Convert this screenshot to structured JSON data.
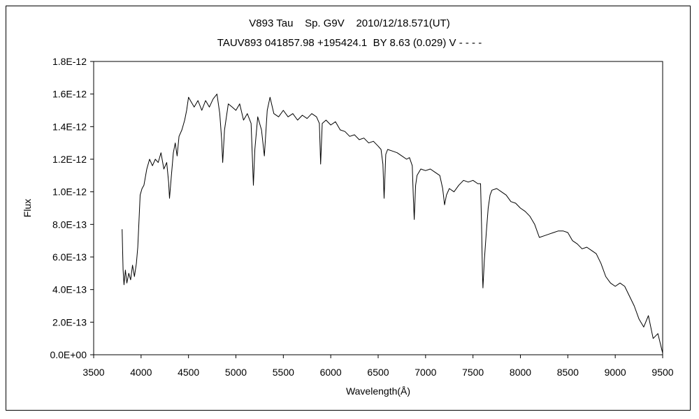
{
  "chart_data": {
    "type": "line",
    "title": "V893 Tau    Sp. G9V    2010/12/18.571(UT)",
    "subtitle": "TAUV893 041857.98 +195424.1  BY 8.63 (0.029) V - - - -",
    "xlabel": "Wavelength(Å)",
    "ylabel": "Flux",
    "xlim": [
      3500,
      9500
    ],
    "ylim": [
      0,
      1.8e-12
    ],
    "x_ticks": [
      3500,
      4000,
      4500,
      5000,
      5500,
      6000,
      6500,
      7000,
      7500,
      8000,
      8500,
      9000,
      9500
    ],
    "y_ticks": [
      0,
      2e-13,
      4e-13,
      6e-13,
      8e-13,
      1e-12,
      1.2e-12,
      1.4e-12,
      1.6e-12,
      1.8e-12
    ],
    "x_tick_labels": [
      "3500",
      "4000",
      "4500",
      "5000",
      "5500",
      "6000",
      "6500",
      "7000",
      "7500",
      "8000",
      "8500",
      "9000",
      "9500"
    ],
    "y_tick_labels": [
      "0.0E+00",
      "2.0E-13",
      "4.0E-13",
      "6.0E-13",
      "8.0E-13",
      "1.0E-12",
      "1.2E-12",
      "1.4E-12",
      "1.6E-12",
      "1.8E-12"
    ],
    "grid": false,
    "series": [
      {
        "color": "#000000",
        "points": [
          [
            3800,
            7.7e-13
          ],
          [
            3810,
            5.2e-13
          ],
          [
            3820,
            4.3e-13
          ],
          [
            3835,
            5.2e-13
          ],
          [
            3850,
            4.4e-13
          ],
          [
            3870,
            5e-13
          ],
          [
            3890,
            4.6e-13
          ],
          [
            3910,
            5.5e-13
          ],
          [
            3930,
            4.8e-13
          ],
          [
            3950,
            5.6e-13
          ],
          [
            3965,
            6.6e-13
          ],
          [
            3975,
            7.8e-13
          ],
          [
            3990,
            9.8e-13
          ],
          [
            4010,
            1.02e-12
          ],
          [
            4030,
            1.04e-12
          ],
          [
            4060,
            1.14e-12
          ],
          [
            4090,
            1.2e-12
          ],
          [
            4120,
            1.16e-12
          ],
          [
            4150,
            1.2e-12
          ],
          [
            4180,
            1.18e-12
          ],
          [
            4210,
            1.24e-12
          ],
          [
            4240,
            1.14e-12
          ],
          [
            4270,
            1.18e-12
          ],
          [
            4290,
            1.06e-12
          ],
          [
            4300,
            9.6e-13
          ],
          [
            4320,
            1.1e-12
          ],
          [
            4340,
            1.24e-12
          ],
          [
            4360,
            1.3e-12
          ],
          [
            4380,
            1.22e-12
          ],
          [
            4400,
            1.34e-12
          ],
          [
            4430,
            1.38e-12
          ],
          [
            4460,
            1.44e-12
          ],
          [
            4480,
            1.5e-12
          ],
          [
            4500,
            1.58e-12
          ],
          [
            4530,
            1.55e-12
          ],
          [
            4560,
            1.52e-12
          ],
          [
            4600,
            1.56e-12
          ],
          [
            4640,
            1.5e-12
          ],
          [
            4680,
            1.56e-12
          ],
          [
            4720,
            1.52e-12
          ],
          [
            4760,
            1.57e-12
          ],
          [
            4800,
            1.6e-12
          ],
          [
            4830,
            1.48e-12
          ],
          [
            4850,
            1.32e-12
          ],
          [
            4861,
            1.18e-12
          ],
          [
            4880,
            1.38e-12
          ],
          [
            4920,
            1.54e-12
          ],
          [
            4960,
            1.52e-12
          ],
          [
            5000,
            1.5e-12
          ],
          [
            5040,
            1.54e-12
          ],
          [
            5080,
            1.44e-12
          ],
          [
            5120,
            1.48e-12
          ],
          [
            5160,
            1.42e-12
          ],
          [
            5172,
            1.24e-12
          ],
          [
            5184,
            1.04e-12
          ],
          [
            5200,
            1.26e-12
          ],
          [
            5230,
            1.46e-12
          ],
          [
            5270,
            1.38e-12
          ],
          [
            5300,
            1.22e-12
          ],
          [
            5330,
            1.5e-12
          ],
          [
            5360,
            1.58e-12
          ],
          [
            5400,
            1.48e-12
          ],
          [
            5450,
            1.46e-12
          ],
          [
            5500,
            1.5e-12
          ],
          [
            5550,
            1.46e-12
          ],
          [
            5600,
            1.48e-12
          ],
          [
            5650,
            1.44e-12
          ],
          [
            5700,
            1.47e-12
          ],
          [
            5750,
            1.45e-12
          ],
          [
            5800,
            1.48e-12
          ],
          [
            5850,
            1.46e-12
          ],
          [
            5880,
            1.42e-12
          ],
          [
            5893,
            1.17e-12
          ],
          [
            5910,
            1.42e-12
          ],
          [
            5950,
            1.44e-12
          ],
          [
            6000,
            1.41e-12
          ],
          [
            6050,
            1.43e-12
          ],
          [
            6100,
            1.38e-12
          ],
          [
            6150,
            1.37e-12
          ],
          [
            6200,
            1.34e-12
          ],
          [
            6250,
            1.35e-12
          ],
          [
            6300,
            1.32e-12
          ],
          [
            6350,
            1.33e-12
          ],
          [
            6400,
            1.3e-12
          ],
          [
            6450,
            1.31e-12
          ],
          [
            6500,
            1.28e-12
          ],
          [
            6530,
            1.26e-12
          ],
          [
            6550,
            1.17e-12
          ],
          [
            6563,
            9.6e-13
          ],
          [
            6580,
            1.23e-12
          ],
          [
            6600,
            1.26e-12
          ],
          [
            6650,
            1.25e-12
          ],
          [
            6700,
            1.24e-12
          ],
          [
            6750,
            1.22e-12
          ],
          [
            6800,
            1.2e-12
          ],
          [
            6830,
            1.21e-12
          ],
          [
            6860,
            1.16e-12
          ],
          [
            6870,
            9.8e-13
          ],
          [
            6880,
            8.3e-13
          ],
          [
            6895,
            1.04e-12
          ],
          [
            6910,
            1.1e-12
          ],
          [
            6950,
            1.14e-12
          ],
          [
            7000,
            1.13e-12
          ],
          [
            7050,
            1.14e-12
          ],
          [
            7100,
            1.12e-12
          ],
          [
            7150,
            1.1e-12
          ],
          [
            7180,
            1.02e-12
          ],
          [
            7200,
            9.2e-13
          ],
          [
            7220,
            9.8e-13
          ],
          [
            7250,
            1.02e-12
          ],
          [
            7300,
            1e-12
          ],
          [
            7350,
            1.04e-12
          ],
          [
            7400,
            1.07e-12
          ],
          [
            7450,
            1.06e-12
          ],
          [
            7500,
            1.07e-12
          ],
          [
            7550,
            1.05e-12
          ],
          [
            7580,
            1.05e-12
          ],
          [
            7590,
            8e-13
          ],
          [
            7600,
            5e-13
          ],
          [
            7605,
            4.1e-13
          ],
          [
            7620,
            5.8e-13
          ],
          [
            7640,
            7.5e-13
          ],
          [
            7660,
            9e-13
          ],
          [
            7680,
            9.8e-13
          ],
          [
            7700,
            1.01e-12
          ],
          [
            7750,
            1.02e-12
          ],
          [
            7800,
            1e-12
          ],
          [
            7850,
            9.8e-13
          ],
          [
            7900,
            9.4e-13
          ],
          [
            7950,
            9.3e-13
          ],
          [
            8000,
            9e-13
          ],
          [
            8050,
            8.8e-13
          ],
          [
            8100,
            8.5e-13
          ],
          [
            8150,
            8e-13
          ],
          [
            8200,
            7.2e-13
          ],
          [
            8250,
            7.3e-13
          ],
          [
            8300,
            7.4e-13
          ],
          [
            8350,
            7.5e-13
          ],
          [
            8400,
            7.6e-13
          ],
          [
            8450,
            7.6e-13
          ],
          [
            8500,
            7.5e-13
          ],
          [
            8550,
            7e-13
          ],
          [
            8600,
            6.8e-13
          ],
          [
            8650,
            6.5e-13
          ],
          [
            8700,
            6.6e-13
          ],
          [
            8750,
            6.4e-13
          ],
          [
            8800,
            6.2e-13
          ],
          [
            8850,
            5.6e-13
          ],
          [
            8900,
            4.8e-13
          ],
          [
            8950,
            4.4e-13
          ],
          [
            9000,
            4.2e-13
          ],
          [
            9050,
            4.4e-13
          ],
          [
            9100,
            4.2e-13
          ],
          [
            9150,
            3.6e-13
          ],
          [
            9200,
            3e-13
          ],
          [
            9250,
            2.2e-13
          ],
          [
            9300,
            1.7e-13
          ],
          [
            9350,
            2.4e-13
          ],
          [
            9400,
            1e-13
          ],
          [
            9450,
            1.3e-13
          ],
          [
            9500,
            1e-14
          ]
        ]
      }
    ]
  }
}
